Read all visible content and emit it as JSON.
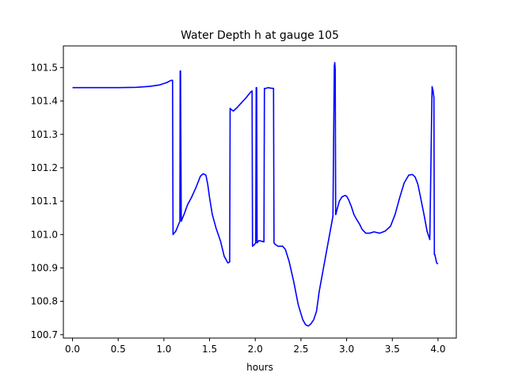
{
  "chart_data": {
    "type": "line",
    "title": "Water Depth h at gauge 105",
    "xlabel": "hours",
    "ylabel": "",
    "xlim": [
      -0.1,
      4.2
    ],
    "ylim": [
      100.69,
      101.565
    ],
    "xticks": [
      0.0,
      0.5,
      1.0,
      1.5,
      2.0,
      2.5,
      3.0,
      3.5,
      4.0
    ],
    "xtick_labels": [
      "0.0",
      "0.5",
      "1.0",
      "1.5",
      "2.0",
      "2.5",
      "3.0",
      "3.5",
      "4.0"
    ],
    "yticks": [
      100.7,
      100.8,
      100.9,
      101.0,
      101.1,
      101.2,
      101.3,
      101.4,
      101.5
    ],
    "ytick_labels": [
      "100.7",
      "100.8",
      "100.9",
      "101.0",
      "101.1",
      "101.2",
      "101.3",
      "101.4",
      "101.5"
    ],
    "grid": false,
    "series": [
      {
        "color": "#0000ff",
        "x": [
          0.0,
          0.2,
          0.5,
          0.7,
          0.85,
          0.95,
          1.03,
          1.08,
          1.095,
          1.1,
          1.13,
          1.16,
          1.175,
          1.178,
          1.182,
          1.19,
          1.22,
          1.26,
          1.3,
          1.35,
          1.4,
          1.43,
          1.46,
          1.48,
          1.5,
          1.53,
          1.57,
          1.62,
          1.66,
          1.7,
          1.72,
          1.725,
          1.735,
          1.76,
          1.8,
          1.85,
          1.9,
          1.95,
          1.965,
          1.97,
          1.99,
          2.005,
          2.01,
          2.015,
          2.02,
          2.04,
          2.07,
          2.095,
          2.1,
          2.105,
          2.14,
          2.18,
          2.2,
          2.205,
          2.22,
          2.25,
          2.3,
          2.33,
          2.37,
          2.42,
          2.47,
          2.52,
          2.55,
          2.58,
          2.61,
          2.64,
          2.67,
          2.7,
          2.74,
          2.78,
          2.82,
          2.85,
          2.865,
          2.87,
          2.875,
          2.88,
          2.882,
          2.89,
          2.92,
          2.95,
          2.98,
          3.0,
          3.02,
          3.05,
          3.08,
          3.11,
          3.14,
          3.17,
          3.21,
          3.25,
          3.3,
          3.36,
          3.42,
          3.48,
          3.53,
          3.58,
          3.63,
          3.68,
          3.72,
          3.75,
          3.78,
          3.81,
          3.85,
          3.88,
          3.91,
          3.935,
          3.945,
          3.955,
          3.96,
          3.965,
          3.985,
          4.0
        ],
        "y": [
          101.44,
          101.44,
          101.44,
          101.441,
          101.444,
          101.448,
          101.455,
          101.462,
          101.462,
          101.0,
          101.01,
          101.03,
          101.04,
          101.49,
          101.49,
          101.04,
          101.06,
          101.09,
          101.11,
          101.14,
          101.175,
          101.182,
          101.178,
          101.15,
          101.11,
          101.06,
          101.02,
          100.98,
          100.935,
          100.915,
          100.918,
          101.378,
          101.375,
          101.37,
          101.38,
          101.395,
          101.41,
          101.427,
          101.43,
          100.965,
          100.97,
          100.975,
          101.44,
          101.44,
          100.975,
          100.982,
          100.98,
          100.978,
          101.438,
          101.437,
          101.44,
          101.438,
          101.438,
          100.975,
          100.97,
          100.965,
          100.965,
          100.955,
          100.92,
          100.86,
          100.79,
          100.745,
          100.73,
          100.726,
          100.733,
          100.745,
          100.77,
          100.83,
          100.89,
          100.95,
          101.01,
          101.055,
          101.505,
          101.515,
          101.495,
          101.06,
          101.06,
          101.07,
          101.1,
          101.113,
          101.117,
          101.115,
          101.105,
          101.085,
          101.06,
          101.045,
          101.032,
          101.015,
          101.004,
          101.004,
          101.008,
          101.004,
          101.01,
          101.025,
          101.06,
          101.11,
          101.155,
          101.178,
          101.18,
          101.172,
          101.15,
          101.11,
          101.055,
          101.01,
          100.985,
          101.443,
          101.432,
          101.41,
          100.94,
          100.94,
          100.915,
          100.912
        ]
      }
    ]
  }
}
